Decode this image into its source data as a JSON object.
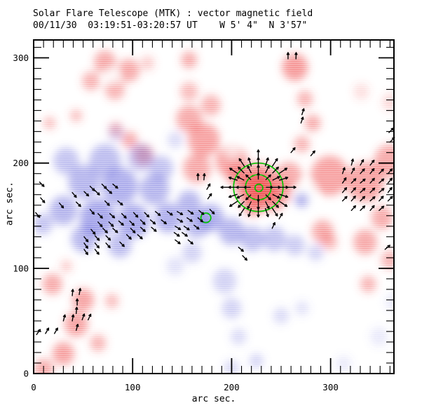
{
  "figure": {
    "title": "Solar Flare Telescope (MTK) : vector magnetic field",
    "subtitle": "00/11/30  03:19:51-03:20:57 UT    W 5' 4\"  N 3'57\""
  },
  "chart_data": {
    "type": "heatmap",
    "title": "Solar Flare Telescope (MTK) : vector magnetic field",
    "subtitle": "00/11/30  03:19:51-03:20:57 UT    W 5' 4\"  N 3'57\"",
    "description": "Vector magnetogram: red = positive line-of-sight flux, blue = negative flux, green contours = strong-field region, black segments = transverse field vectors",
    "xlabel": "arc sec.",
    "ylabel": "arc sec.",
    "xlim": [
      0,
      364
    ],
    "ylim": [
      0,
      317
    ],
    "xticks": [
      0,
      100,
      200,
      300
    ],
    "yticks": [
      0,
      100,
      200,
      300
    ],
    "minor_tick_step": 10,
    "grid": false,
    "polarity_colors": {
      "positive": "#ee4242",
      "negative": "#5b5bd8",
      "contour": "#00c400",
      "vector": "#000000"
    },
    "red_blobs": [
      [
        72,
        296,
        11,
        0.5
      ],
      [
        96,
        288,
        11,
        0.5
      ],
      [
        58,
        278,
        9,
        0.45
      ],
      [
        82,
        270,
        10,
        0.45
      ],
      [
        115,
        295,
        7,
        0.3
      ],
      [
        157,
        298,
        8,
        0.5
      ],
      [
        43,
        245,
        6,
        0.4
      ],
      [
        16,
        238,
        6,
        0.4
      ],
      [
        83,
        232,
        7,
        0.45
      ],
      [
        97,
        222,
        8,
        0.5
      ],
      [
        111,
        208,
        10,
        0.5
      ],
      [
        157,
        242,
        13,
        0.5
      ],
      [
        172,
        222,
        16,
        0.55
      ],
      [
        165,
        195,
        14,
        0.5
      ],
      [
        179,
        255,
        10,
        0.45
      ],
      [
        157,
        268,
        9,
        0.4
      ],
      [
        264,
        291,
        13,
        0.6
      ],
      [
        274,
        261,
        8,
        0.45
      ],
      [
        282,
        238,
        8,
        0.5
      ],
      [
        271,
        218,
        8,
        0.45
      ],
      [
        200,
        202,
        16,
        0.55
      ],
      [
        205,
        188,
        10,
        0.5
      ],
      [
        258,
        188,
        13,
        0.5
      ],
      [
        299,
        188,
        19,
        0.55
      ],
      [
        335,
        182,
        19,
        0.55
      ],
      [
        360,
        202,
        16,
        0.5
      ],
      [
        331,
        268,
        8,
        0.2
      ],
      [
        360,
        258,
        8,
        0.25
      ],
      [
        292,
        135,
        11,
        0.5
      ],
      [
        335,
        125,
        12,
        0.5
      ],
      [
        352,
        148,
        11,
        0.5
      ],
      [
        360,
        108,
        9,
        0.45
      ],
      [
        338,
        85,
        8,
        0.45
      ],
      [
        299,
        125,
        8,
        0.4
      ],
      [
        19,
        85,
        10,
        0.5
      ],
      [
        50,
        70,
        11,
        0.55
      ],
      [
        43,
        47,
        12,
        0.55
      ],
      [
        30,
        19,
        11,
        0.55
      ],
      [
        10,
        4,
        10,
        0.5
      ],
      [
        65,
        29,
        8,
        0.45
      ],
      [
        79,
        69,
        7,
        0.4
      ],
      [
        33,
        102,
        6,
        0.3
      ],
      [
        227,
        177,
        24,
        0.5
      ],
      [
        227,
        177,
        15,
        0.92
      ],
      [
        221,
        158,
        9,
        0.5
      ],
      [
        243,
        162,
        9,
        0.45
      ],
      [
        250,
        172,
        11,
        0.5
      ]
    ],
    "white_blobs": [
      [
        79,
        283,
        6,
        0.75
      ],
      [
        201,
        213,
        7,
        0.7
      ],
      [
        276,
        172,
        9,
        0.9
      ]
    ],
    "blue_blobs": [
      [
        33,
        202,
        13,
        0.4
      ],
      [
        72,
        202,
        16,
        0.45
      ],
      [
        108,
        205,
        13,
        0.4
      ],
      [
        129,
        195,
        12,
        0.4
      ],
      [
        51,
        182,
        16,
        0.5
      ],
      [
        87,
        178,
        18,
        0.55
      ],
      [
        122,
        175,
        15,
        0.5
      ],
      [
        30,
        155,
        14,
        0.5
      ],
      [
        65,
        148,
        18,
        0.6
      ],
      [
        101,
        145,
        16,
        0.6
      ],
      [
        136,
        148,
        14,
        0.55
      ],
      [
        165,
        142,
        13,
        0.5
      ],
      [
        51,
        128,
        13,
        0.5
      ],
      [
        87,
        122,
        12,
        0.45
      ],
      [
        9,
        142,
        10,
        0.4
      ],
      [
        83,
        228,
        8,
        0.25
      ],
      [
        143,
        222,
        8,
        0.25
      ],
      [
        157,
        162,
        12,
        0.5
      ],
      [
        179,
        148,
        13,
        0.55
      ],
      [
        200,
        135,
        13,
        0.5
      ],
      [
        221,
        128,
        12,
        0.45
      ],
      [
        243,
        128,
        12,
        0.4
      ],
      [
        264,
        122,
        10,
        0.35
      ],
      [
        285,
        115,
        8,
        0.3
      ],
      [
        271,
        165,
        7,
        0.6
      ],
      [
        193,
        88,
        12,
        0.3
      ],
      [
        200,
        62,
        10,
        0.3
      ],
      [
        207,
        35,
        8,
        0.25
      ],
      [
        225,
        12,
        7,
        0.3
      ],
      [
        250,
        55,
        8,
        0.25
      ],
      [
        271,
        62,
        7,
        0.2
      ],
      [
        349,
        35,
        9,
        0.15
      ],
      [
        363,
        68,
        8,
        0.15
      ],
      [
        313,
        9,
        8,
        0.15
      ],
      [
        200,
        5,
        8,
        0.25
      ],
      [
        143,
        102,
        9,
        0.2
      ],
      [
        160,
        115,
        10,
        0.3
      ]
    ],
    "contours": {
      "color": "#00c400",
      "ellipses": [
        [
          227,
          177,
          25,
          23
        ],
        [
          227,
          177,
          13,
          12
        ],
        [
          227.5,
          176.5,
          4,
          3.5
        ],
        [
          174,
          148,
          5,
          4.5
        ]
      ]
    },
    "sunspot_arrows": {
      "cx": 227,
      "cy": 177,
      "step": 6.5,
      "max_r": 26,
      "color": "#000000"
    },
    "vectors": [
      [
        57,
        178,
        -45
      ],
      [
        69,
        180,
        -45
      ],
      [
        80,
        180,
        -40
      ],
      [
        39,
        172,
        -50
      ],
      [
        51,
        173,
        -45
      ],
      [
        62,
        174,
        -45
      ],
      [
        74,
        175,
        -40
      ],
      [
        26,
        162,
        -50
      ],
      [
        43,
        163,
        -45
      ],
      [
        72,
        164,
        -45
      ],
      [
        85,
        164,
        -40
      ],
      [
        57,
        156,
        -50
      ],
      [
        2,
        153,
        -50
      ],
      [
        6,
        182,
        -45
      ],
      [
        7,
        167,
        -50
      ],
      [
        65,
        152,
        -45
      ],
      [
        77,
        152,
        -42
      ],
      [
        89,
        152,
        -45
      ],
      [
        101,
        153,
        -48
      ],
      [
        112,
        153,
        -45
      ],
      [
        123,
        154,
        -40
      ],
      [
        135,
        154,
        -35
      ],
      [
        145,
        154,
        -30
      ],
      [
        156,
        155,
        -35
      ],
      [
        167,
        155,
        -40
      ],
      [
        178,
        156,
        -45
      ],
      [
        65,
        144,
        -48
      ],
      [
        76,
        144,
        -45
      ],
      [
        86,
        145,
        -42
      ],
      [
        97,
        145,
        -45
      ],
      [
        108,
        146,
        -45
      ],
      [
        118,
        146,
        -40
      ],
      [
        129,
        146,
        -38
      ],
      [
        145,
        147,
        -30
      ],
      [
        155,
        148,
        -35
      ],
      [
        166,
        148,
        -40
      ],
      [
        58,
        137,
        -50
      ],
      [
        70,
        138,
        -45
      ],
      [
        80,
        138,
        -42
      ],
      [
        98,
        138,
        -45
      ],
      [
        108,
        139,
        -42
      ],
      [
        119,
        139,
        -40
      ],
      [
        143,
        140,
        -32
      ],
      [
        152,
        140,
        -35
      ],
      [
        162,
        141,
        -38
      ],
      [
        51,
        130,
        -52
      ],
      [
        62,
        131,
        -48
      ],
      [
        73,
        131,
        -45
      ],
      [
        94,
        132,
        -45
      ],
      [
        105,
        132,
        -42
      ],
      [
        142,
        134,
        -35
      ],
      [
        150,
        134,
        -35
      ],
      [
        51,
        124,
        -55
      ],
      [
        62,
        124,
        -50
      ],
      [
        73,
        124,
        -48
      ],
      [
        87,
        125,
        -45
      ],
      [
        143,
        127,
        -38
      ],
      [
        156,
        127,
        -40
      ],
      [
        51,
        118,
        -55
      ],
      [
        62,
        118,
        -52
      ],
      [
        321,
        198,
        75
      ],
      [
        330,
        198,
        60
      ],
      [
        340,
        198,
        52
      ],
      [
        312,
        190,
        70
      ],
      [
        321,
        190,
        62
      ],
      [
        330,
        190,
        48
      ],
      [
        340,
        190,
        52
      ],
      [
        349,
        190,
        45
      ],
      [
        358,
        190,
        48
      ],
      [
        312,
        181,
        55
      ],
      [
        321,
        181,
        45
      ],
      [
        330,
        181,
        40
      ],
      [
        340,
        181,
        48
      ],
      [
        349,
        181,
        42
      ],
      [
        358,
        181,
        50
      ],
      [
        312,
        172,
        50
      ],
      [
        321,
        172,
        48
      ],
      [
        330,
        172,
        42
      ],
      [
        340,
        172,
        45
      ],
      [
        349,
        172,
        40
      ],
      [
        358,
        172,
        52
      ],
      [
        312,
        164,
        45
      ],
      [
        321,
        164,
        50
      ],
      [
        330,
        164,
        45
      ],
      [
        340,
        164,
        42
      ],
      [
        349,
        164,
        48
      ],
      [
        358,
        164,
        45
      ],
      [
        321,
        155,
        48
      ],
      [
        330,
        155,
        45
      ],
      [
        340,
        155,
        50
      ],
      [
        349,
        155,
        42
      ],
      [
        39,
        74,
        85
      ],
      [
        46,
        75,
        80
      ],
      [
        44,
        65,
        90
      ],
      [
        43,
        57,
        85
      ],
      [
        30,
        50,
        75
      ],
      [
        39,
        50,
        80
      ],
      [
        49,
        51,
        70
      ],
      [
        55,
        51,
        65
      ],
      [
        12,
        38,
        60
      ],
      [
        21,
        38,
        60
      ],
      [
        3,
        37,
        55
      ],
      [
        43,
        41,
        75
      ],
      [
        257,
        299,
        90
      ],
      [
        265,
        299,
        88
      ],
      [
        271,
        246,
        72
      ],
      [
        270,
        238,
        70
      ],
      [
        260,
        210,
        50
      ],
      [
        280,
        207,
        50
      ],
      [
        355,
        118,
        40
      ],
      [
        166,
        184,
        90
      ],
      [
        172,
        184,
        85
      ],
      [
        175,
        175,
        60
      ],
      [
        176,
        166,
        55
      ],
      [
        207,
        120,
        -40
      ],
      [
        211,
        112,
        -45
      ],
      [
        248,
        147,
        60
      ],
      [
        241,
        138,
        65
      ],
      [
        359,
        229,
        45
      ],
      [
        360,
        220,
        45
      ]
    ]
  }
}
